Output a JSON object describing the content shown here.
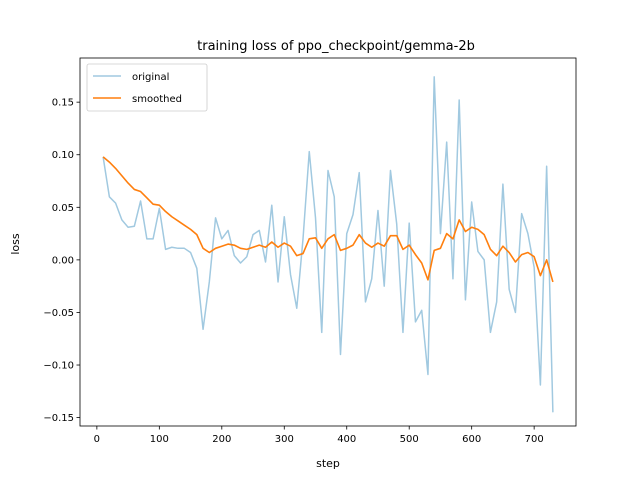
{
  "chart_data": {
    "type": "line",
    "title": "training loss of ppo_checkpoint/gemma-2b",
    "xlabel": "step",
    "ylabel": "loss",
    "xlim": [
      -27,
      767
    ],
    "ylim": [
      -0.158,
      0.192
    ],
    "xticks": [
      0,
      100,
      200,
      300,
      400,
      500,
      600,
      700
    ],
    "yticks": [
      -0.15,
      -0.1,
      -0.05,
      0.0,
      0.05,
      0.1,
      0.15
    ],
    "xtick_labels": [
      "0",
      "100",
      "200",
      "300",
      "400",
      "500",
      "600",
      "700"
    ],
    "ytick_labels": [
      "−0.15",
      "−0.10",
      "−0.05",
      "0.00",
      "0.05",
      "0.10",
      "0.15"
    ],
    "grid": false,
    "legend_position": "top-left",
    "x": [
      10,
      20,
      30,
      40,
      50,
      60,
      70,
      80,
      90,
      100,
      110,
      120,
      130,
      140,
      150,
      160,
      170,
      180,
      190,
      200,
      210,
      220,
      230,
      240,
      250,
      260,
      270,
      280,
      290,
      300,
      310,
      320,
      330,
      340,
      350,
      360,
      370,
      380,
      390,
      400,
      410,
      420,
      430,
      440,
      450,
      460,
      470,
      480,
      490,
      500,
      510,
      520,
      530,
      540,
      550,
      560,
      570,
      580,
      590,
      600,
      610,
      620,
      630,
      640,
      650,
      660,
      670,
      680,
      690,
      700,
      710,
      720,
      730
    ],
    "series": [
      {
        "name": "original",
        "color": "#a1c9e0",
        "values": [
          0.098,
          0.06,
          0.054,
          0.038,
          0.031,
          0.032,
          0.056,
          0.02,
          0.02,
          0.049,
          0.01,
          0.012,
          0.011,
          0.011,
          0.007,
          -0.008,
          -0.066,
          -0.021,
          0.04,
          0.02,
          0.028,
          0.004,
          -0.003,
          0.003,
          0.024,
          0.028,
          -0.002,
          0.052,
          -0.021,
          0.041,
          -0.014,
          -0.046,
          0.02,
          0.103,
          0.04,
          -0.069,
          0.085,
          0.06,
          -0.09,
          0.025,
          0.043,
          0.083,
          -0.04,
          -0.018,
          0.047,
          -0.025,
          0.085,
          0.034,
          -0.069,
          0.035,
          -0.059,
          -0.048,
          -0.109,
          0.174,
          0.025,
          0.112,
          -0.018,
          0.152,
          -0.038,
          0.055,
          0.008,
          0.0,
          -0.069,
          -0.04,
          0.072,
          -0.028,
          -0.05,
          0.044,
          0.025,
          -0.007,
          -0.119,
          0.089,
          -0.145
        ]
      },
      {
        "name": "smoothed",
        "color": "#ff7f0e",
        "values": [
          0.098,
          0.093,
          0.087,
          0.08,
          0.073,
          0.067,
          0.065,
          0.059,
          0.053,
          0.052,
          0.046,
          0.041,
          0.037,
          0.033,
          0.029,
          0.024,
          0.011,
          0.007,
          0.011,
          0.013,
          0.015,
          0.014,
          0.011,
          0.01,
          0.012,
          0.014,
          0.012,
          0.017,
          0.012,
          0.016,
          0.013,
          0.004,
          0.006,
          0.02,
          0.021,
          0.011,
          0.02,
          0.024,
          0.009,
          0.011,
          0.014,
          0.024,
          0.016,
          0.012,
          0.016,
          0.013,
          0.023,
          0.023,
          0.01,
          0.014,
          0.005,
          -0.003,
          -0.019,
          0.009,
          0.011,
          0.025,
          0.02,
          0.038,
          0.027,
          0.031,
          0.029,
          0.024,
          0.01,
          0.004,
          0.013,
          0.007,
          -0.002,
          0.005,
          0.007,
          0.003,
          -0.015,
          0.0,
          -0.021
        ]
      }
    ]
  }
}
